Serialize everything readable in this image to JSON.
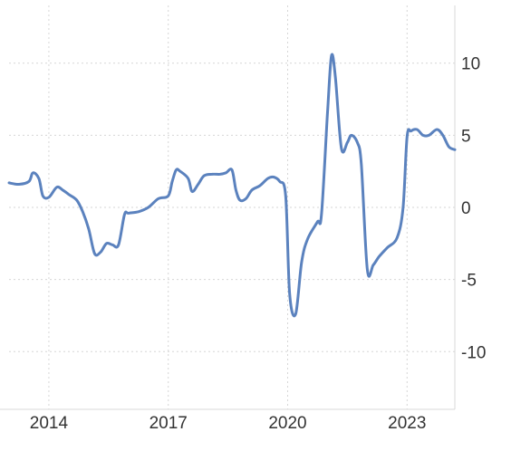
{
  "chart_data": {
    "type": "line",
    "grid": true,
    "xlim": [
      2013.0,
      2024.2
    ],
    "ylim": [
      -14,
      14
    ],
    "x_ticks": [
      2014,
      2017,
      2020,
      2023
    ],
    "x_tick_labels": [
      "2014",
      "2017",
      "2020",
      "2023"
    ],
    "y_ticks": [
      10,
      5,
      0,
      -5,
      -10
    ],
    "y_tick_labels": [
      "10",
      "5",
      "0",
      "-5",
      "-10"
    ],
    "y_axis_side": "right",
    "series_color": "#5b82be",
    "series": [
      {
        "x": [
          2013.0,
          2013.25,
          2013.5,
          2013.6,
          2013.75,
          2013.85,
          2014.0,
          2014.2,
          2014.35,
          2014.5,
          2014.7,
          2014.85,
          2015.0,
          2015.15,
          2015.3,
          2015.45,
          2015.6,
          2015.75,
          2015.9,
          2016.0,
          2016.25,
          2016.5,
          2016.75,
          2017.0,
          2017.1,
          2017.2,
          2017.3,
          2017.5,
          2017.6,
          2017.75,
          2017.9,
          2018.1,
          2018.3,
          2018.45,
          2018.6,
          2018.7,
          2018.8,
          2018.95,
          2019.1,
          2019.3,
          2019.5,
          2019.65,
          2019.8,
          2019.95,
          2020.05,
          2020.2,
          2020.35,
          2020.5,
          2020.75,
          2020.85,
          2021.0,
          2021.1,
          2021.2,
          2021.35,
          2021.5,
          2021.6,
          2021.75,
          2021.85,
          2022.0,
          2022.15,
          2022.3,
          2022.5,
          2022.75,
          2022.9,
          2023.0,
          2023.1,
          2023.25,
          2023.4,
          2023.55,
          2023.75,
          2023.9,
          2024.05,
          2024.2
        ],
        "values": [
          1.7,
          1.6,
          1.8,
          2.4,
          2.0,
          0.8,
          0.7,
          1.4,
          1.2,
          0.9,
          0.5,
          -0.3,
          -1.5,
          -3.2,
          -3.1,
          -2.5,
          -2.6,
          -2.6,
          -0.5,
          -0.4,
          -0.3,
          0.0,
          0.6,
          0.8,
          1.8,
          2.6,
          2.5,
          2.0,
          1.1,
          1.6,
          2.2,
          2.3,
          2.3,
          2.4,
          2.6,
          1.2,
          0.5,
          0.6,
          1.2,
          1.5,
          2.0,
          2.1,
          1.8,
          0.8,
          -6.0,
          -7.4,
          -3.8,
          -2.2,
          -1.0,
          -0.5,
          6.5,
          10.5,
          9.0,
          4.1,
          4.5,
          5.0,
          4.5,
          3.0,
          -4.3,
          -4.0,
          -3.4,
          -2.8,
          -2.1,
          0.0,
          4.9,
          5.3,
          5.4,
          5.0,
          5.0,
          5.4,
          5.0,
          4.2,
          4.0
        ]
      }
    ]
  }
}
